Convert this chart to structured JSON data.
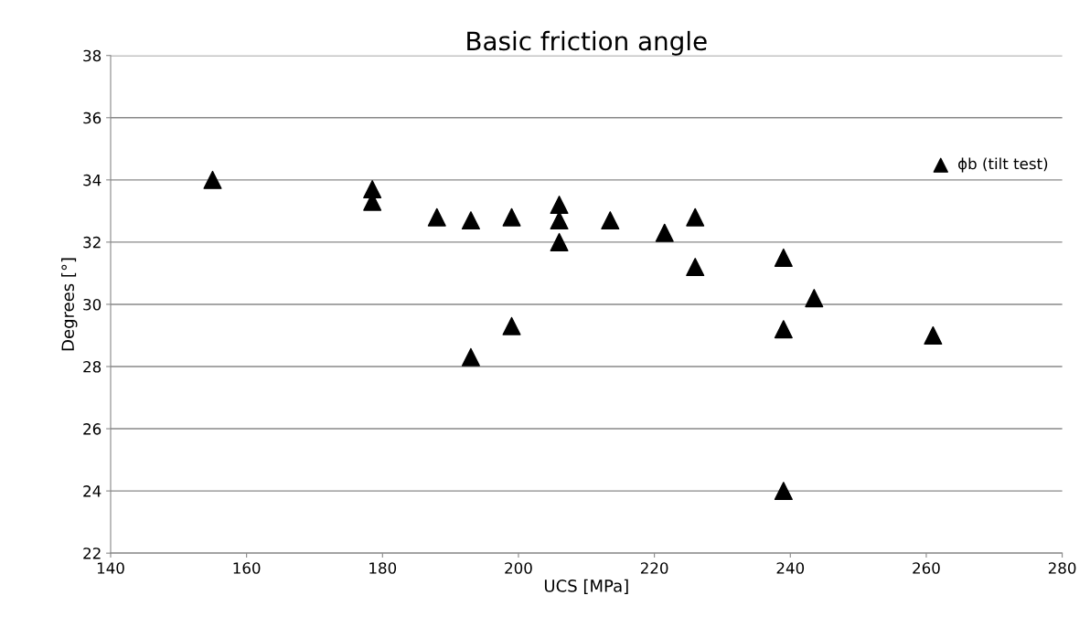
{
  "chart_data": {
    "type": "scatter",
    "title": "Basic friction angle",
    "xlabel": "UCS [MPa]",
    "ylabel": "Degrees [°]",
    "series": [
      {
        "name": "ϕb (tilt test)",
        "color": "#000000",
        "x": [
          155,
          178.5,
          178.5,
          188,
          193,
          199,
          206,
          206,
          206,
          213.5,
          221.5,
          226,
          226,
          239,
          243.5,
          239,
          261,
          193,
          199,
          239
        ],
        "values": [
          34.0,
          33.7,
          33.3,
          32.8,
          32.7,
          32.8,
          33.2,
          32.7,
          32.0,
          32.7,
          32.3,
          32.8,
          31.2,
          31.5,
          30.2,
          29.2,
          29.0,
          28.3,
          29.3,
          24.0
        ]
      }
    ],
    "xlim": [
      140,
      280
    ],
    "xticks": [
      140,
      160,
      180,
      200,
      220,
      240,
      260,
      280
    ],
    "ylim": [
      22,
      38
    ],
    "yticks": [
      22,
      24,
      26,
      28,
      30,
      32,
      34,
      36,
      38
    ],
    "grid": "y",
    "legend": "right",
    "marker": "triangle"
  }
}
